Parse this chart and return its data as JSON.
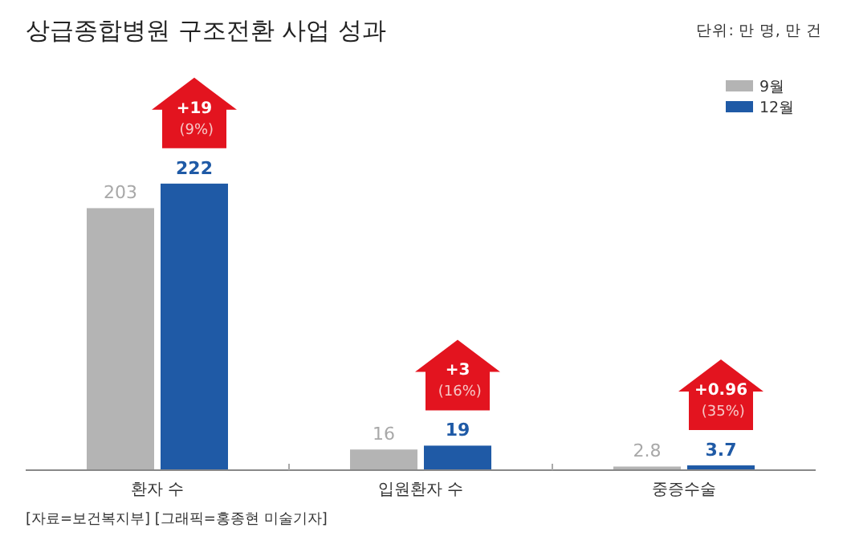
{
  "chart_data": {
    "type": "bar",
    "title": "상급종합병원 구조전환 사업 성과",
    "subtitle": "단위: 만 명, 만 건",
    "categories": [
      "환자 수",
      "입원환자 수",
      "중증수술"
    ],
    "series": [
      {
        "name": "9월",
        "color": "#b4b4b4",
        "values": [
          203,
          16,
          2.8
        ]
      },
      {
        "name": "12월",
        "color": "#1f5aa6",
        "values": [
          222,
          19,
          3.7
        ]
      }
    ],
    "data_labels": true,
    "legend": "top right",
    "annotations": [
      "+19 (9%)",
      "+3 (16%)",
      "+0.96 (35%)",
      "[자료=보건복지부] [그래픽=홍종현 미술기자]"
    ]
  }
}
